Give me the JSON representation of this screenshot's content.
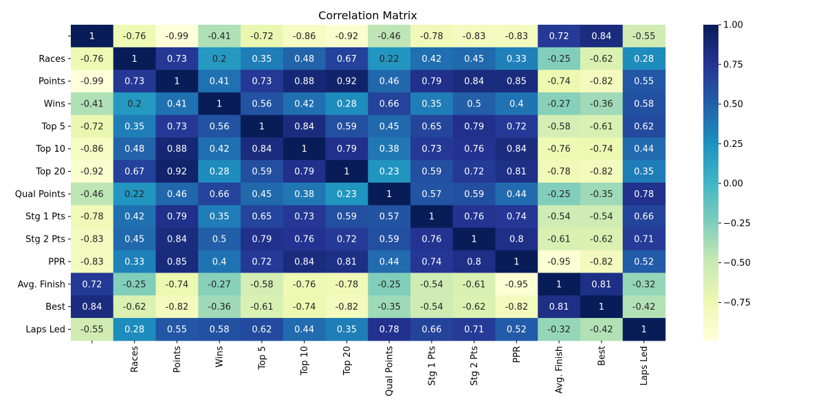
{
  "chart_data": {
    "type": "heatmap",
    "title": "Correlation Matrix",
    "x_labels": [
      "",
      "Races",
      "Points",
      "Wins",
      "Top 5",
      "Top 10",
      "Top 20",
      "Qual Points",
      "Stg 1 Pts",
      "Stg 2 Pts",
      "PPR",
      "Avg. Finish",
      "Best",
      "Laps Led"
    ],
    "y_labels": [
      "",
      "Races",
      "Points",
      "Wins",
      "Top 5",
      "Top 10",
      "Top 20",
      "Qual Points",
      "Stg 1 Pts",
      "Stg 2 Pts",
      "PPR",
      "Avg. Finish",
      "Best",
      "Laps Led"
    ],
    "values": [
      [
        1,
        -0.76,
        -0.99,
        -0.41,
        -0.72,
        -0.86,
        -0.92,
        -0.46,
        -0.78,
        -0.83,
        -0.83,
        0.72,
        0.84,
        -0.55
      ],
      [
        -0.76,
        1,
        0.73,
        0.2,
        0.35,
        0.48,
        0.67,
        0.22,
        0.42,
        0.45,
        0.33,
        -0.25,
        -0.62,
        0.28
      ],
      [
        -0.99,
        0.73,
        1,
        0.41,
        0.73,
        0.88,
        0.92,
        0.46,
        0.79,
        0.84,
        0.85,
        -0.74,
        -0.82,
        0.55
      ],
      [
        -0.41,
        0.2,
        0.41,
        1,
        0.56,
        0.42,
        0.28,
        0.66,
        0.35,
        0.5,
        0.4,
        -0.27,
        -0.36,
        0.58
      ],
      [
        -0.72,
        0.35,
        0.73,
        0.56,
        1,
        0.84,
        0.59,
        0.45,
        0.65,
        0.79,
        0.72,
        -0.58,
        -0.61,
        0.62
      ],
      [
        -0.86,
        0.48,
        0.88,
        0.42,
        0.84,
        1,
        0.79,
        0.38,
        0.73,
        0.76,
        0.84,
        -0.76,
        -0.74,
        0.44
      ],
      [
        -0.92,
        0.67,
        0.92,
        0.28,
        0.59,
        0.79,
        1,
        0.23,
        0.59,
        0.72,
        0.81,
        -0.78,
        -0.82,
        0.35
      ],
      [
        -0.46,
        0.22,
        0.46,
        0.66,
        0.45,
        0.38,
        0.23,
        1,
        0.57,
        0.59,
        0.44,
        -0.25,
        -0.35,
        0.78
      ],
      [
        -0.78,
        0.42,
        0.79,
        0.35,
        0.65,
        0.73,
        0.59,
        0.57,
        1,
        0.76,
        0.74,
        -0.54,
        -0.54,
        0.66
      ],
      [
        -0.83,
        0.45,
        0.84,
        0.5,
        0.79,
        0.76,
        0.72,
        0.59,
        0.76,
        1,
        0.8,
        -0.61,
        -0.62,
        0.71
      ],
      [
        -0.83,
        0.33,
        0.85,
        0.4,
        0.72,
        0.84,
        0.81,
        0.44,
        0.74,
        0.8,
        1,
        -0.95,
        -0.82,
        0.52
      ],
      [
        0.72,
        -0.25,
        -0.74,
        -0.27,
        -0.58,
        -0.76,
        -0.78,
        -0.25,
        -0.54,
        -0.61,
        -0.95,
        1,
        0.81,
        -0.32
      ],
      [
        0.84,
        -0.62,
        -0.82,
        -0.36,
        -0.61,
        -0.74,
        -0.82,
        -0.35,
        -0.54,
        -0.62,
        -0.82,
        0.81,
        1,
        -0.42
      ],
      [
        -0.55,
        0.28,
        0.55,
        0.58,
        0.62,
        0.44,
        0.35,
        0.78,
        0.66,
        0.71,
        0.52,
        -0.32,
        -0.42,
        1
      ]
    ],
    "colormap": "YlGnBu",
    "vmin": -0.99,
    "vmax": 1.0,
    "colorbar_ticks": [
      1.0,
      0.75,
      0.5,
      0.25,
      0.0,
      -0.25,
      -0.5,
      -0.75
    ],
    "colorbar_tick_labels": [
      "1.00",
      "0.75",
      "0.50",
      "0.25",
      "0.00",
      "−0.25",
      "−0.50",
      "−0.75"
    ],
    "annotations": true,
    "grid": false
  }
}
